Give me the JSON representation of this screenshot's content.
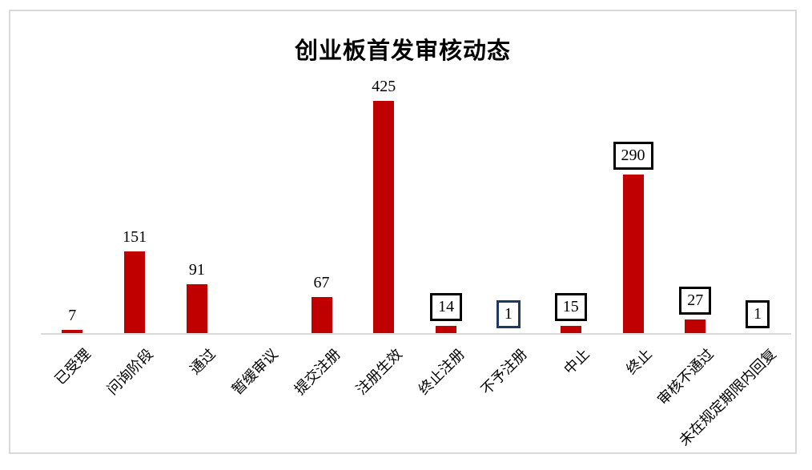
{
  "title": "创业板首发审核动态",
  "chart_data": {
    "type": "bar",
    "title": "创业板首发审核动态",
    "categories": [
      "已受理",
      "问询阶段",
      "通过",
      "暂缓审议",
      "提交注册",
      "注册生效",
      "终止注册",
      "不予注册",
      "中止",
      "终止",
      "审核不通过",
      "未在规定期限内回复"
    ],
    "values": [
      7,
      151,
      91,
      0,
      67,
      425,
      14,
      1,
      15,
      290,
      27,
      1
    ],
    "data_labels": [
      "7",
      "151",
      "91",
      "",
      "67",
      "425",
      "14",
      "1",
      "15",
      "290",
      "27",
      "1"
    ],
    "label_boxed": [
      false,
      false,
      false,
      false,
      false,
      false,
      true,
      true,
      true,
      true,
      true,
      true
    ],
    "label_box_colors": [
      null,
      null,
      null,
      null,
      null,
      null,
      "#000000",
      "#1F3864",
      "#000000",
      "#000000",
      "#000000",
      "#000000"
    ],
    "bar_color": "#C00000",
    "axis_color": "#D9D9D9",
    "frame_color": "#D9D9D9",
    "text_color": "#000000",
    "xlabel": "",
    "ylabel": "",
    "ylim": [
      0,
      450
    ],
    "grid": false,
    "legend": false,
    "x_tick_rotation_deg": -45
  }
}
